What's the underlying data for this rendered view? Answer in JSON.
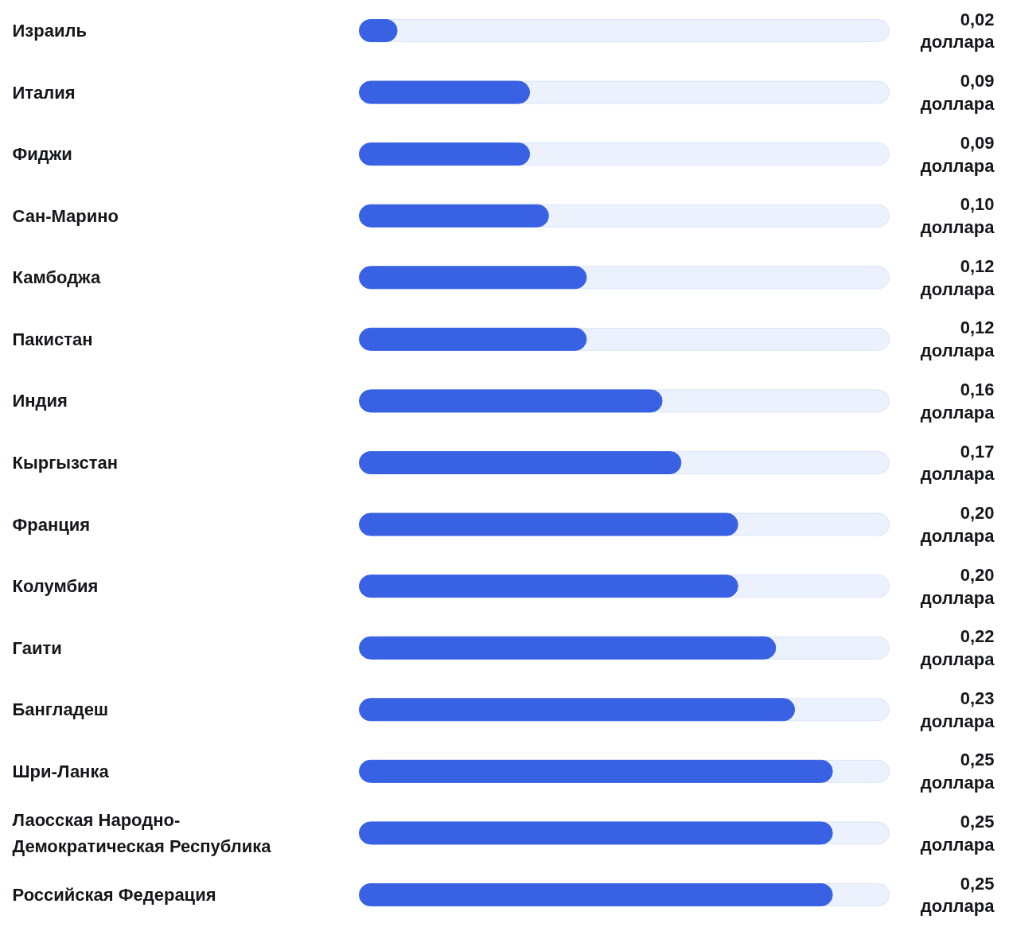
{
  "chart_data": {
    "type": "bar",
    "orientation": "horizontal",
    "categories": [
      "Израиль",
      "Италия",
      "Фиджи",
      "Сан-Марино",
      "Камбоджа",
      "Пакистан",
      "Индия",
      "Кыргызстан",
      "Франция",
      "Колумбия",
      "Гаити",
      "Бангладеш",
      "Шри-Ланка",
      "Лаосская Народно-Демократическая Республика",
      "Российская Федерация"
    ],
    "values": [
      0.02,
      0.09,
      0.09,
      0.1,
      0.12,
      0.12,
      0.16,
      0.17,
      0.2,
      0.2,
      0.22,
      0.23,
      0.25,
      0.25,
      0.25
    ],
    "value_labels": [
      "0,02 доллара",
      "0,09 доллара",
      "0,09 доллара",
      "0,10 доллара",
      "0,12 доллара",
      "0,12 доллара",
      "0,16 доллара",
      "0,17 доллара",
      "0,20 доллара",
      "0,20 доллара",
      "0,22 доллара",
      "0,23 доллара",
      "0,25 доллара",
      "0,25 доллара",
      "0,25 доллара"
    ],
    "color": "#3862e3",
    "xlim": [
      0,
      0.28
    ],
    "tick_labels": false,
    "grid": false
  }
}
